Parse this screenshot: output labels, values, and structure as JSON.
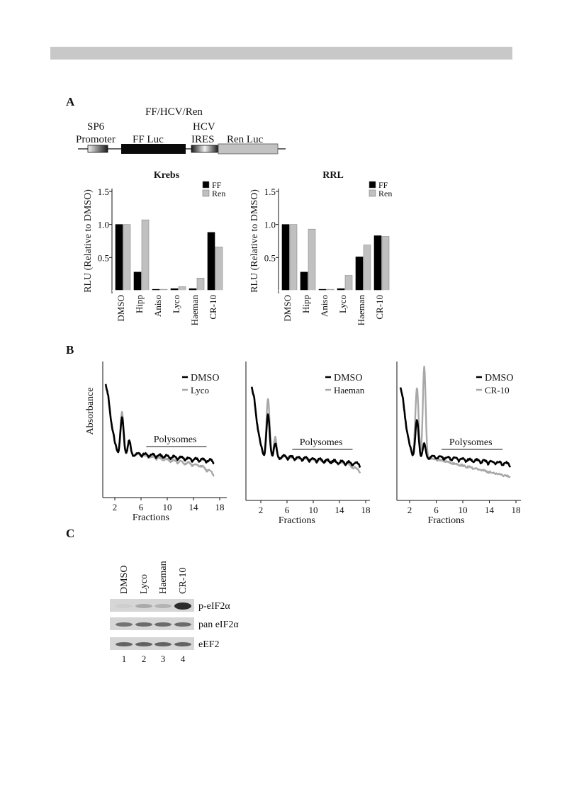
{
  "panels": {
    "a": "A",
    "b": "B",
    "c": "C"
  },
  "construct": {
    "title": "FF/HCV/Ren",
    "sp6_line1": "SP6",
    "sp6_line2": "Promoter",
    "ff": "FF Luc",
    "hcv_line1": "HCV",
    "hcv_line2": "IRES",
    "ren": "Ren Luc"
  },
  "chart_data": [
    {
      "type": "bar",
      "title": "Krebs",
      "ylabel": "RLU (Relative to DMSO)",
      "ylim": [
        0,
        1.5
      ],
      "yticks": [
        "0.5",
        "1.0",
        "1.5"
      ],
      "categories": [
        "DMSO",
        "Hipp",
        "Aniso",
        "Lyco",
        "Haeman",
        "CR-10"
      ],
      "series": [
        {
          "name": "FF",
          "color": "#000000",
          "values": [
            1.0,
            0.28,
            0.02,
            0.03,
            0.03,
            0.88
          ]
        },
        {
          "name": "Ren",
          "color": "#c0c0c0",
          "values": [
            1.0,
            1.07,
            0.02,
            0.06,
            0.19,
            0.66
          ]
        }
      ]
    },
    {
      "type": "bar",
      "title": "RRL",
      "ylabel": "RLU (Relative to DMSO)",
      "ylim": [
        0,
        1.5
      ],
      "yticks": [
        "0.5",
        "1.0",
        "1.5"
      ],
      "categories": [
        "DMSO",
        "Hipp",
        "Aniso",
        "Lyco",
        "Haeman",
        "CR-10"
      ],
      "series": [
        {
          "name": "FF",
          "color": "#000000",
          "values": [
            1.0,
            0.28,
            0.02,
            0.03,
            0.51,
            0.83
          ]
        },
        {
          "name": "Ren",
          "color": "#c0c0c0",
          "values": [
            1.0,
            0.93,
            0.02,
            0.23,
            0.69,
            0.82
          ]
        }
      ]
    },
    {
      "type": "line",
      "ylabel": "Absorbance",
      "xlabel": "Fractions",
      "xticks": [
        "2",
        "6",
        "10",
        "14",
        "18"
      ],
      "annotation": "Polysomes",
      "series": [
        {
          "name": "DMSO",
          "color": "#000000"
        },
        {
          "name": "Lyco",
          "color": "#a8a8a8"
        }
      ]
    },
    {
      "type": "line",
      "xlabel": "Fractions",
      "xticks": [
        "2",
        "6",
        "10",
        "14",
        "18"
      ],
      "annotation": "Polysomes",
      "series": [
        {
          "name": "DMSO",
          "color": "#000000"
        },
        {
          "name": "Haeman",
          "color": "#a8a8a8"
        }
      ]
    },
    {
      "type": "line",
      "xlabel": "Fractions",
      "xticks": [
        "2",
        "6",
        "10",
        "14",
        "18"
      ],
      "annotation": "Polysomes",
      "series": [
        {
          "name": "DMSO",
          "color": "#000000"
        },
        {
          "name": "CR-10",
          "color": "#a8a8a8"
        }
      ]
    }
  ],
  "blot": {
    "lanes": [
      "DMSO",
      "Lyco",
      "Haeman",
      "CR-10"
    ],
    "lane_numbers": [
      "1",
      "2",
      "3",
      "4"
    ],
    "rows": [
      {
        "label": "p-eIF2α",
        "intensity": [
          0.05,
          0.25,
          0.2,
          0.95
        ]
      },
      {
        "label": "pan eIF2α",
        "intensity": [
          0.55,
          0.6,
          0.6,
          0.6
        ]
      },
      {
        "label": "eEF2",
        "intensity": [
          0.65,
          0.65,
          0.65,
          0.65
        ]
      }
    ]
  }
}
